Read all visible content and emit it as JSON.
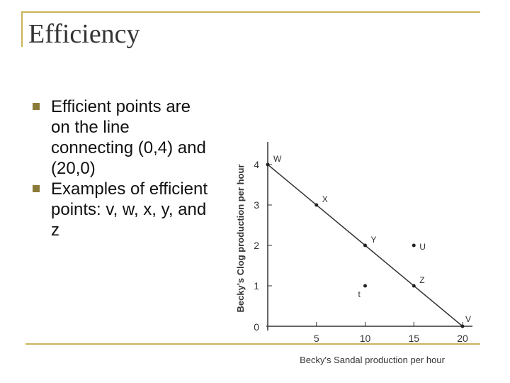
{
  "slide": {
    "title": "Efficiency",
    "bullets": [
      "Efficient points are on the line connecting (0,4) and (20,0)",
      "Examples of efficient points: v, w, x, y, and z"
    ]
  },
  "colors": {
    "frame": "#c9b45a",
    "bullet": "#8c7a3a"
  },
  "chart_data": {
    "type": "line",
    "xlabel": "Becky's Sandal  production per hour",
    "ylabel": "Becky's Clog  production per hour",
    "xlim": [
      0,
      20
    ],
    "ylim": [
      0,
      4
    ],
    "x_ticks": [
      5,
      10,
      15,
      20
    ],
    "y_ticks": [
      1,
      2,
      3,
      4
    ],
    "origin_label": "0",
    "grid": false,
    "series": [
      {
        "x": [
          0,
          20
        ],
        "y": [
          4,
          0
        ]
      }
    ],
    "points": [
      {
        "label": "W",
        "x": 0,
        "y": 4,
        "on_line": true
      },
      {
        "label": "X",
        "x": 5,
        "y": 3,
        "on_line": true
      },
      {
        "label": "Y",
        "x": 10,
        "y": 2,
        "on_line": true
      },
      {
        "label": "Z",
        "x": 15,
        "y": 1,
        "on_line": true
      },
      {
        "label": "V",
        "x": 20,
        "y": 0,
        "on_line": true
      },
      {
        "label": "U",
        "x": 15,
        "y": 2,
        "on_line": false
      },
      {
        "label": "t",
        "x": 10,
        "y": 1,
        "on_line": false
      }
    ]
  }
}
